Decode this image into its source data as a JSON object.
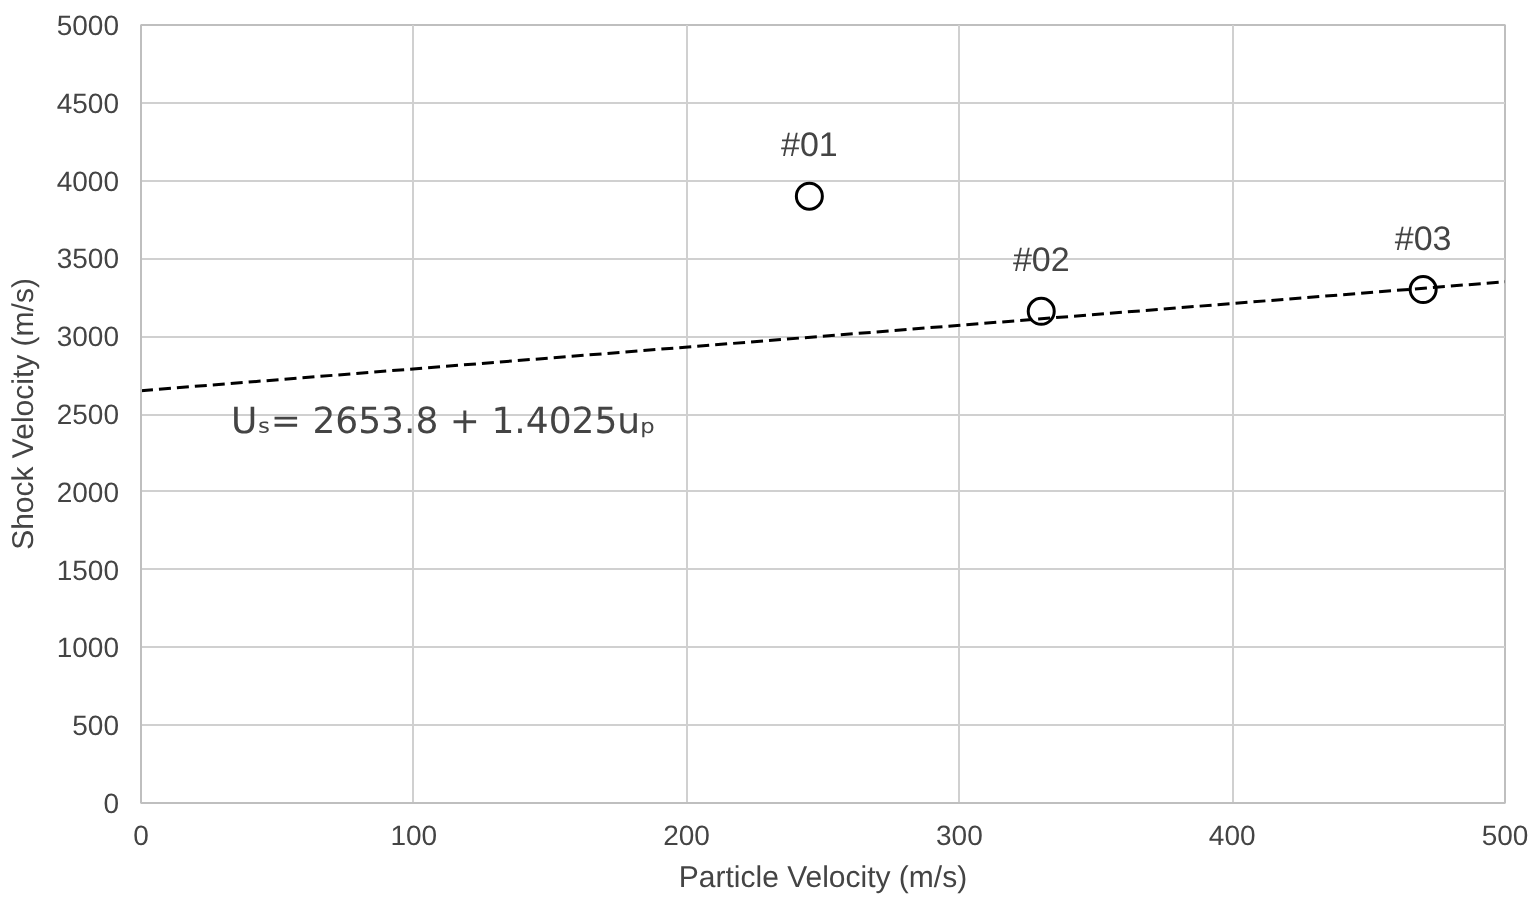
{
  "chart_data": {
    "type": "scatter",
    "xlabel": "Particle Velocity (m/s)",
    "ylabel": "Shock Velocity (m/s)",
    "xlim": [
      0,
      500
    ],
    "xticks": [
      0,
      100,
      200,
      300,
      400,
      500
    ],
    "ylim": [
      0,
      5000
    ],
    "yticks": [
      0,
      500,
      1000,
      1500,
      2000,
      2500,
      3000,
      3500,
      4000,
      4500,
      5000
    ],
    "grid": true,
    "series": [
      {
        "marker": "circle",
        "color": "#000000",
        "x": [
          245,
          330,
          470
        ],
        "values": [
          3900,
          3160,
          3300
        ]
      },
      {
        "type": "line",
        "marker": "none",
        "line_style": "dashed",
        "color": "#000000",
        "x": [
          0,
          500
        ],
        "values": [
          2650,
          3350
        ]
      }
    ],
    "annotations": [
      {
        "text": "#01",
        "x": 245,
        "y": 3900
      },
      {
        "text": "#02",
        "x": 330,
        "y": 3160
      },
      {
        "text": "#03",
        "x": 470,
        "y": 3300
      },
      "Uₛ= 2653.8 + 1.4025uₚ"
    ]
  }
}
